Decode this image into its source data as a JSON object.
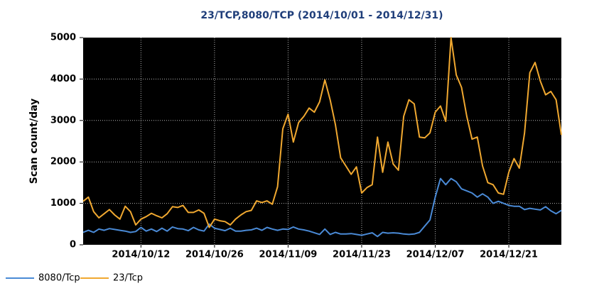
{
  "chart_data": {
    "type": "line",
    "title": "23/TCP,8080/TCP (2014/10/01 - 2014/12/31)",
    "y_label": "Scan count/day",
    "x": [
      "2014/10/01",
      "2014/10/02",
      "2014/10/03",
      "2014/10/04",
      "2014/10/05",
      "2014/10/06",
      "2014/10/07",
      "2014/10/08",
      "2014/10/09",
      "2014/10/10",
      "2014/10/11",
      "2014/10/12",
      "2014/10/13",
      "2014/10/14",
      "2014/10/15",
      "2014/10/16",
      "2014/10/17",
      "2014/10/18",
      "2014/10/19",
      "2014/10/20",
      "2014/10/21",
      "2014/10/22",
      "2014/10/23",
      "2014/10/24",
      "2014/10/25",
      "2014/10/26",
      "2014/10/27",
      "2014/10/28",
      "2014/10/29",
      "2014/10/30",
      "2014/10/31",
      "2014/11/01",
      "2014/11/02",
      "2014/11/03",
      "2014/11/04",
      "2014/11/05",
      "2014/11/06",
      "2014/11/07",
      "2014/11/08",
      "2014/11/09",
      "2014/11/10",
      "2014/11/11",
      "2014/11/12",
      "2014/11/13",
      "2014/11/14",
      "2014/11/15",
      "2014/11/16",
      "2014/11/17",
      "2014/11/18",
      "2014/11/19",
      "2014/11/20",
      "2014/11/21",
      "2014/11/22",
      "2014/11/23",
      "2014/11/24",
      "2014/11/25",
      "2014/11/26",
      "2014/11/27",
      "2014/11/28",
      "2014/11/29",
      "2014/11/30",
      "2014/12/01",
      "2014/12/02",
      "2014/12/03",
      "2014/12/04",
      "2014/12/05",
      "2014/12/06",
      "2014/12/07",
      "2014/12/08",
      "2014/12/09",
      "2014/12/10",
      "2014/12/11",
      "2014/12/12",
      "2014/12/13",
      "2014/12/14",
      "2014/12/15",
      "2014/12/16",
      "2014/12/17",
      "2014/12/18",
      "2014/12/19",
      "2014/12/20",
      "2014/12/21",
      "2014/12/22",
      "2014/12/23",
      "2014/12/24",
      "2014/12/25",
      "2014/12/26",
      "2014/12/27",
      "2014/12/28",
      "2014/12/29",
      "2014/12/30",
      "2014/12/31"
    ],
    "series": [
      {
        "name": "8080/Tcp",
        "color": "#4a8ad6",
        "values": [
          300,
          350,
          300,
          380,
          350,
          390,
          370,
          350,
          330,
          300,
          320,
          420,
          330,
          380,
          320,
          400,
          330,
          430,
          390,
          380,
          340,
          420,
          360,
          330,
          500,
          400,
          370,
          340,
          400,
          330,
          330,
          350,
          360,
          400,
          350,
          420,
          380,
          350,
          380,
          370,
          430,
          380,
          360,
          330,
          290,
          250,
          380,
          250,
          300,
          260,
          260,
          270,
          250,
          230,
          260,
          290,
          200,
          300,
          280,
          290,
          280,
          260,
          250,
          260,
          300,
          450,
          600,
          1150,
          1600,
          1450,
          1600,
          1520,
          1350,
          1300,
          1250,
          1150,
          1230,
          1150,
          1000,
          1050,
          1000,
          950,
          930,
          930,
          850,
          880,
          860,
          840,
          920,
          820,
          750,
          830
        ]
      },
      {
        "name": "23/Tcp",
        "color": "#f0a830",
        "values": [
          1050,
          1150,
          800,
          650,
          750,
          850,
          720,
          620,
          930,
          800,
          480,
          620,
          680,
          760,
          700,
          650,
          750,
          920,
          900,
          950,
          780,
          780,
          840,
          760,
          420,
          620,
          580,
          560,
          480,
          620,
          720,
          800,
          830,
          1060,
          1020,
          1060,
          980,
          1400,
          2800,
          3150,
          2480,
          2950,
          3100,
          3300,
          3200,
          3450,
          3980,
          3500,
          2900,
          2100,
          1900,
          1700,
          1880,
          1250,
          1380,
          1450,
          2600,
          1750,
          2480,
          1950,
          1800,
          3100,
          3500,
          3400,
          2600,
          2580,
          2700,
          3200,
          3350,
          2980,
          5000,
          4100,
          3800,
          3100,
          2550,
          2600,
          1900,
          1500,
          1450,
          1250,
          1220,
          1750,
          2080,
          1850,
          2700,
          4150,
          4400,
          3950,
          3620,
          3700,
          3500,
          2650
        ]
      }
    ],
    "ylim": [
      0,
      5000
    ],
    "yticks": [
      0,
      1000,
      2000,
      3000,
      4000,
      5000
    ],
    "xticks": [
      "2014/10/12",
      "2014/10/26",
      "2014/11/09",
      "2014/11/23",
      "2014/12/07",
      "2014/12/21"
    ],
    "grid": true
  }
}
